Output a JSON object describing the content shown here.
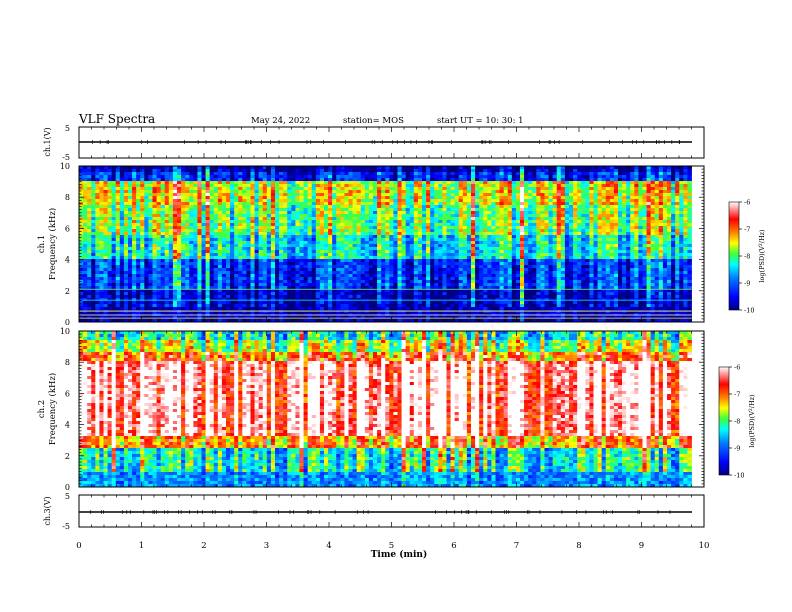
{
  "header": {
    "title": "VLF Spectra",
    "date": "May 24, 2022",
    "station": "station= MOS",
    "start": "start  UT =   10: 30: 1"
  },
  "chart_data": [
    {
      "type": "line",
      "panel": "ch1-waveform",
      "ylabel": "ch.1(V)",
      "ylim": [
        -5,
        5
      ],
      "yticks": [
        "5",
        "-5"
      ],
      "xlim": [
        0,
        10
      ],
      "series": [
        {
          "x": [
            0,
            9.8
          ],
          "y": [
            0,
            0
          ]
        }
      ]
    },
    {
      "type": "heatmap",
      "panel": "ch1-spectrogram",
      "ylabel": "ch.1\nFrequency (kHz)",
      "ylim": [
        0,
        10
      ],
      "yticks": [
        "0",
        "2",
        "4",
        "6",
        "8",
        "10"
      ],
      "xlim": [
        0,
        10
      ],
      "data_end_min": 9.8,
      "colorbar": {
        "label": "log(PSD)(V²/Hz)",
        "ticks": [
          "-6",
          "-7",
          "-8",
          "-9",
          "-10"
        ],
        "range": [
          -10,
          -6
        ]
      }
    },
    {
      "type": "heatmap",
      "panel": "ch2-spectrogram",
      "ylabel": "ch.2\nFrequency (kHz)",
      "ylim": [
        0,
        10
      ],
      "yticks": [
        "0",
        "2",
        "4",
        "6",
        "8",
        "10"
      ],
      "xlim": [
        0,
        10
      ],
      "data_end_min": 9.8,
      "colorbar": {
        "label": "log(PSD)(V²/Hz)",
        "ticks": [
          "-6",
          "-7",
          "-8",
          "-9",
          "-10"
        ],
        "range": [
          -10,
          -6
        ]
      }
    },
    {
      "type": "line",
      "panel": "ch3-waveform",
      "ylabel": "ch.3(V)",
      "ylim": [
        -5,
        5
      ],
      "yticks": [
        "5",
        "-5"
      ],
      "xlim": [
        0,
        10
      ],
      "xlabel": "Time (min)",
      "xticks": [
        "0",
        "1",
        "2",
        "3",
        "4",
        "5",
        "6",
        "7",
        "8",
        "9",
        "10"
      ],
      "series": [
        {
          "x": [
            0,
            9.8
          ],
          "y": [
            0,
            0
          ]
        }
      ]
    }
  ],
  "colors": {
    "jet": [
      "#00007f",
      "#0000ff",
      "#007fff",
      "#00ffff",
      "#7fff7f",
      "#ffff00",
      "#ff7f00",
      "#ff0000",
      "#ffffff"
    ]
  }
}
